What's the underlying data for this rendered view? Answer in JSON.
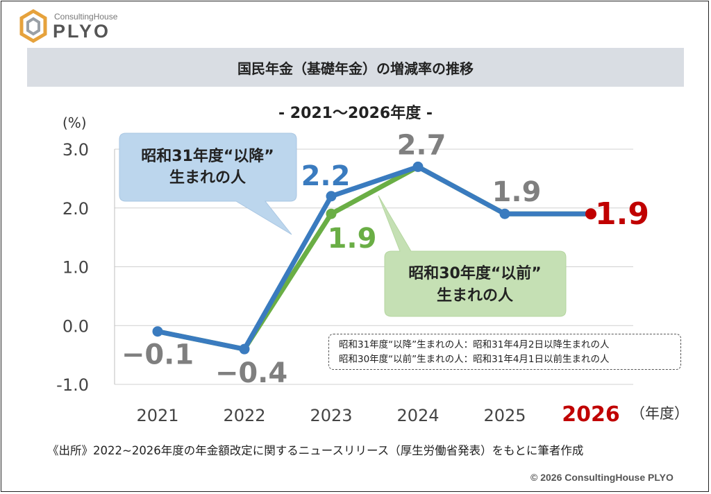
{
  "logo": {
    "top_text": "ConsultingHouse",
    "brand_text": "PLYO"
  },
  "header": {
    "title": "国民年金（基礎年金）の増減率の推移"
  },
  "colors": {
    "series_after": "#3a7bbf",
    "series_before": "#6aae45",
    "highlight": "#c00000",
    "label_gray": "#7f7f7f",
    "callout_blue": "#bcd6ed",
    "callout_green": "#c5e0b4"
  },
  "chart_data": {
    "type": "line",
    "title": "- 2021～2026年度 -",
    "ylabel": "(%)",
    "xlabel": "（年度）",
    "x": [
      "2021",
      "2022",
      "2023",
      "2024",
      "2025",
      "2026"
    ],
    "highlight_category": "2026",
    "yticks": [
      "3.0",
      "2.0",
      "1.0",
      "0.0",
      "-1.0"
    ],
    "ylim": [
      -1.0,
      3.0
    ],
    "grid": true,
    "series": [
      {
        "name": "昭和31年度“以降”生まれの人",
        "values": [
          -0.1,
          -0.4,
          2.2,
          2.7,
          1.9,
          1.9
        ],
        "labels": [
          "−0.1",
          "−0.4",
          "2.2",
          "2.7",
          "1.9",
          "1.9"
        ]
      },
      {
        "name": "昭和30年度“以前”生まれの人",
        "values": [
          -0.1,
          -0.4,
          1.9,
          2.7,
          1.9,
          1.9
        ],
        "labels": [
          "",
          "",
          "1.9",
          "",
          "",
          ""
        ]
      }
    ],
    "callouts": {
      "after_line1": "昭和31年度“以降”",
      "after_line2": "生まれの人",
      "before_line1": "昭和30年度“以前”",
      "before_line2": "生まれの人"
    }
  },
  "note": {
    "line1": "昭和31年度“以降”生まれの人：昭和31年4月2日以降生まれの人",
    "line2": "昭和30年度“以前”生まれの人：昭和31年4月1日以前生まれの人"
  },
  "source": "《出所》2022~2026年度の年金額改定に関するニュースリリース（厚生労働省発表）をもとに筆者作成",
  "copyright": "© 2026 ConsultingHouse PLYO"
}
